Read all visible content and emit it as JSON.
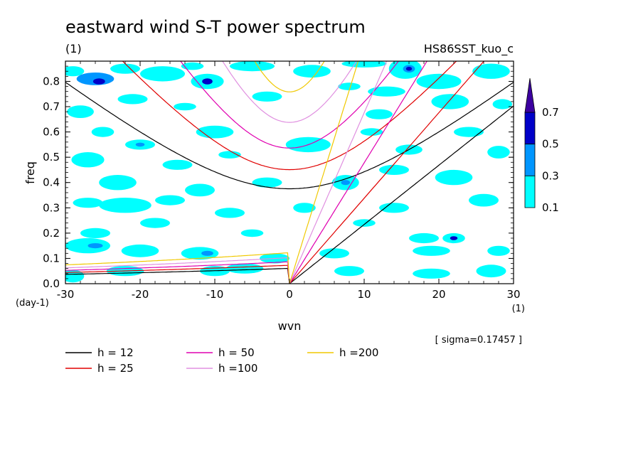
{
  "chart_data": {
    "type": "contour",
    "title": "eastward wind S-T power spectrum",
    "subtitle_left": "(1)",
    "subtitle_right": "HS86SST_kuo_c",
    "xlabel": "wvn",
    "ylabel": "freq",
    "x_unit": "(1)",
    "y_unit": "(day-1)",
    "xlim": [
      -30,
      30
    ],
    "ylim": [
      0,
      0.88
    ],
    "x_ticks": [
      -30,
      -20,
      -10,
      0,
      10,
      20,
      30
    ],
    "x_tick_labels": [
      "-30",
      "-20",
      "-10",
      "0",
      "10",
      "20",
      "30"
    ],
    "y_ticks": [
      0.0,
      0.1,
      0.2,
      0.3,
      0.4,
      0.5,
      0.6,
      0.7,
      0.8
    ],
    "y_tick_labels": [
      "0.0",
      "0.1",
      "0.2",
      "0.3",
      "0.4",
      "0.5",
      "0.6",
      "0.7",
      "0.8"
    ],
    "sigma_note": "[ sigma=0.17457 ]",
    "contour_levels": [
      0.1,
      0.3,
      0.5,
      0.7
    ],
    "colorbar_labels": [
      "0.7",
      "0.5",
      "0.3",
      "0.1"
    ],
    "colors": {
      "lev1": "#00ffff",
      "lev2": "#0096ff",
      "lev3": "#0000c8",
      "lev4": "#3c00a0"
    },
    "dispersion_curves": [
      {
        "name": "h = 12",
        "h": 12,
        "color": "#000000"
      },
      {
        "name": "h = 25",
        "h": 25,
        "color": "#e00000"
      },
      {
        "name": "h = 50",
        "h": 50,
        "color": "#e000b0"
      },
      {
        "name": "h =100",
        "h": 100,
        "color": "#e090e0"
      },
      {
        "name": "h =200",
        "h": 200,
        "color": "#f0c800"
      }
    ],
    "contour_blobs": [
      {
        "x": -29,
        "y": 0.84,
        "rx": 1.5,
        "ry": 0.02,
        "level": 1
      },
      {
        "x": -26,
        "y": 0.81,
        "rx": 2.5,
        "ry": 0.025,
        "level": 2
      },
      {
        "x": -25.5,
        "y": 0.8,
        "rx": 0.8,
        "ry": 0.012,
        "level": 3
      },
      {
        "x": -22,
        "y": 0.85,
        "rx": 2,
        "ry": 0.02,
        "level": 1
      },
      {
        "x": -17,
        "y": 0.83,
        "rx": 3,
        "ry": 0.03,
        "level": 1
      },
      {
        "x": -13,
        "y": 0.86,
        "rx": 1.5,
        "ry": 0.015,
        "level": 1
      },
      {
        "x": -11,
        "y": 0.8,
        "rx": 2.2,
        "ry": 0.03,
        "level": 1
      },
      {
        "x": -11,
        "y": 0.8,
        "rx": 0.7,
        "ry": 0.012,
        "level": 3
      },
      {
        "x": -5,
        "y": 0.86,
        "rx": 3,
        "ry": 0.02,
        "level": 1
      },
      {
        "x": 3,
        "y": 0.84,
        "rx": 2.5,
        "ry": 0.025,
        "level": 1
      },
      {
        "x": 10,
        "y": 0.87,
        "rx": 3,
        "ry": 0.015,
        "level": 1
      },
      {
        "x": 15.5,
        "y": 0.85,
        "rx": 2.2,
        "ry": 0.04,
        "level": 1
      },
      {
        "x": 16,
        "y": 0.85,
        "rx": 0.8,
        "ry": 0.015,
        "level": 2
      },
      {
        "x": 16,
        "y": 0.85,
        "rx": 0.4,
        "ry": 0.008,
        "level": 3
      },
      {
        "x": 20,
        "y": 0.8,
        "rx": 3,
        "ry": 0.03,
        "level": 1
      },
      {
        "x": 27,
        "y": 0.84,
        "rx": 2.5,
        "ry": 0.03,
        "level": 1
      },
      {
        "x": 13,
        "y": 0.76,
        "rx": 2.5,
        "ry": 0.02,
        "level": 1
      },
      {
        "x": 8,
        "y": 0.78,
        "rx": 1.5,
        "ry": 0.015,
        "level": 1
      },
      {
        "x": -21,
        "y": 0.73,
        "rx": 2,
        "ry": 0.02,
        "level": 1
      },
      {
        "x": -28,
        "y": 0.68,
        "rx": 1.8,
        "ry": 0.025,
        "level": 1
      },
      {
        "x": -14,
        "y": 0.7,
        "rx": 1.5,
        "ry": 0.015,
        "level": 1
      },
      {
        "x": -3,
        "y": 0.74,
        "rx": 2,
        "ry": 0.02,
        "level": 1
      },
      {
        "x": 12,
        "y": 0.67,
        "rx": 1.8,
        "ry": 0.02,
        "level": 1
      },
      {
        "x": 21.5,
        "y": 0.72,
        "rx": 2.5,
        "ry": 0.03,
        "level": 1
      },
      {
        "x": 28.5,
        "y": 0.71,
        "rx": 1.3,
        "ry": 0.02,
        "level": 1
      },
      {
        "x": -25,
        "y": 0.6,
        "rx": 1.5,
        "ry": 0.02,
        "level": 1
      },
      {
        "x": -20,
        "y": 0.55,
        "rx": 2,
        "ry": 0.02,
        "level": 1
      },
      {
        "x": -20,
        "y": 0.55,
        "rx": 0.6,
        "ry": 0.008,
        "level": 2
      },
      {
        "x": -10,
        "y": 0.6,
        "rx": 2.5,
        "ry": 0.025,
        "level": 1
      },
      {
        "x": -27,
        "y": 0.49,
        "rx": 2.2,
        "ry": 0.03,
        "level": 1
      },
      {
        "x": -15,
        "y": 0.47,
        "rx": 2,
        "ry": 0.02,
        "level": 1
      },
      {
        "x": -8,
        "y": 0.51,
        "rx": 1.5,
        "ry": 0.015,
        "level": 1
      },
      {
        "x": 2.5,
        "y": 0.55,
        "rx": 3,
        "ry": 0.03,
        "level": 1
      },
      {
        "x": 11,
        "y": 0.6,
        "rx": 1.5,
        "ry": 0.015,
        "level": 1
      },
      {
        "x": 16,
        "y": 0.53,
        "rx": 1.8,
        "ry": 0.02,
        "level": 1
      },
      {
        "x": 24,
        "y": 0.6,
        "rx": 2,
        "ry": 0.02,
        "level": 1
      },
      {
        "x": 28,
        "y": 0.52,
        "rx": 1.5,
        "ry": 0.025,
        "level": 1
      },
      {
        "x": -23,
        "y": 0.4,
        "rx": 2.5,
        "ry": 0.03,
        "level": 1
      },
      {
        "x": -12,
        "y": 0.37,
        "rx": 2,
        "ry": 0.025,
        "level": 1
      },
      {
        "x": -3,
        "y": 0.4,
        "rx": 2,
        "ry": 0.02,
        "level": 1
      },
      {
        "x": 7.5,
        "y": 0.4,
        "rx": 1.8,
        "ry": 0.03,
        "level": 1
      },
      {
        "x": 7.5,
        "y": 0.4,
        "rx": 0.6,
        "ry": 0.01,
        "level": 2
      },
      {
        "x": 14,
        "y": 0.45,
        "rx": 2,
        "ry": 0.02,
        "level": 1
      },
      {
        "x": 22,
        "y": 0.42,
        "rx": 2.5,
        "ry": 0.03,
        "level": 1
      },
      {
        "x": -27,
        "y": 0.32,
        "rx": 2,
        "ry": 0.02,
        "level": 1
      },
      {
        "x": -22,
        "y": 0.31,
        "rx": 3.5,
        "ry": 0.03,
        "level": 1
      },
      {
        "x": -16,
        "y": 0.33,
        "rx": 2,
        "ry": 0.02,
        "level": 1
      },
      {
        "x": -8,
        "y": 0.28,
        "rx": 2,
        "ry": 0.02,
        "level": 1
      },
      {
        "x": 2,
        "y": 0.3,
        "rx": 1.5,
        "ry": 0.02,
        "level": 1
      },
      {
        "x": 14,
        "y": 0.3,
        "rx": 2,
        "ry": 0.02,
        "level": 1
      },
      {
        "x": 26,
        "y": 0.33,
        "rx": 2,
        "ry": 0.025,
        "level": 1
      },
      {
        "x": -26,
        "y": 0.2,
        "rx": 2,
        "ry": 0.02,
        "level": 1
      },
      {
        "x": -18,
        "y": 0.24,
        "rx": 2,
        "ry": 0.02,
        "level": 1
      },
      {
        "x": -5,
        "y": 0.2,
        "rx": 1.5,
        "ry": 0.015,
        "level": 1
      },
      {
        "x": 10,
        "y": 0.24,
        "rx": 1.5,
        "ry": 0.015,
        "level": 1
      },
      {
        "x": 18,
        "y": 0.18,
        "rx": 2,
        "ry": 0.02,
        "level": 1
      },
      {
        "x": 22,
        "y": 0.18,
        "rx": 1.5,
        "ry": 0.02,
        "level": 1
      },
      {
        "x": 22,
        "y": 0.18,
        "rx": 0.5,
        "ry": 0.008,
        "level": 3
      },
      {
        "x": -27,
        "y": 0.15,
        "rx": 3,
        "ry": 0.03,
        "level": 1
      },
      {
        "x": -26,
        "y": 0.15,
        "rx": 1,
        "ry": 0.01,
        "level": 2
      },
      {
        "x": -20,
        "y": 0.13,
        "rx": 2.5,
        "ry": 0.025,
        "level": 1
      },
      {
        "x": -12,
        "y": 0.12,
        "rx": 2.5,
        "ry": 0.025,
        "level": 1
      },
      {
        "x": -11,
        "y": 0.12,
        "rx": 0.8,
        "ry": 0.01,
        "level": 2
      },
      {
        "x": -2,
        "y": 0.1,
        "rx": 2,
        "ry": 0.02,
        "level": 1
      },
      {
        "x": 6,
        "y": 0.12,
        "rx": 2,
        "ry": 0.02,
        "level": 1
      },
      {
        "x": 19,
        "y": 0.13,
        "rx": 2.5,
        "ry": 0.02,
        "level": 1
      },
      {
        "x": 28,
        "y": 0.13,
        "rx": 1.5,
        "ry": 0.02,
        "level": 1
      },
      {
        "x": -29,
        "y": 0.03,
        "rx": 1.5,
        "ry": 0.025,
        "level": 1
      },
      {
        "x": -22,
        "y": 0.05,
        "rx": 2.5,
        "ry": 0.02,
        "level": 1
      },
      {
        "x": -10,
        "y": 0.05,
        "rx": 2,
        "ry": 0.02,
        "level": 1
      },
      {
        "x": -6,
        "y": 0.06,
        "rx": 2.5,
        "ry": 0.02,
        "level": 1
      },
      {
        "x": 8,
        "y": 0.05,
        "rx": 2,
        "ry": 0.02,
        "level": 1
      },
      {
        "x": 19,
        "y": 0.04,
        "rx": 2.5,
        "ry": 0.02,
        "level": 1
      },
      {
        "x": 27,
        "y": 0.05,
        "rx": 2,
        "ry": 0.025,
        "level": 1
      }
    ]
  }
}
